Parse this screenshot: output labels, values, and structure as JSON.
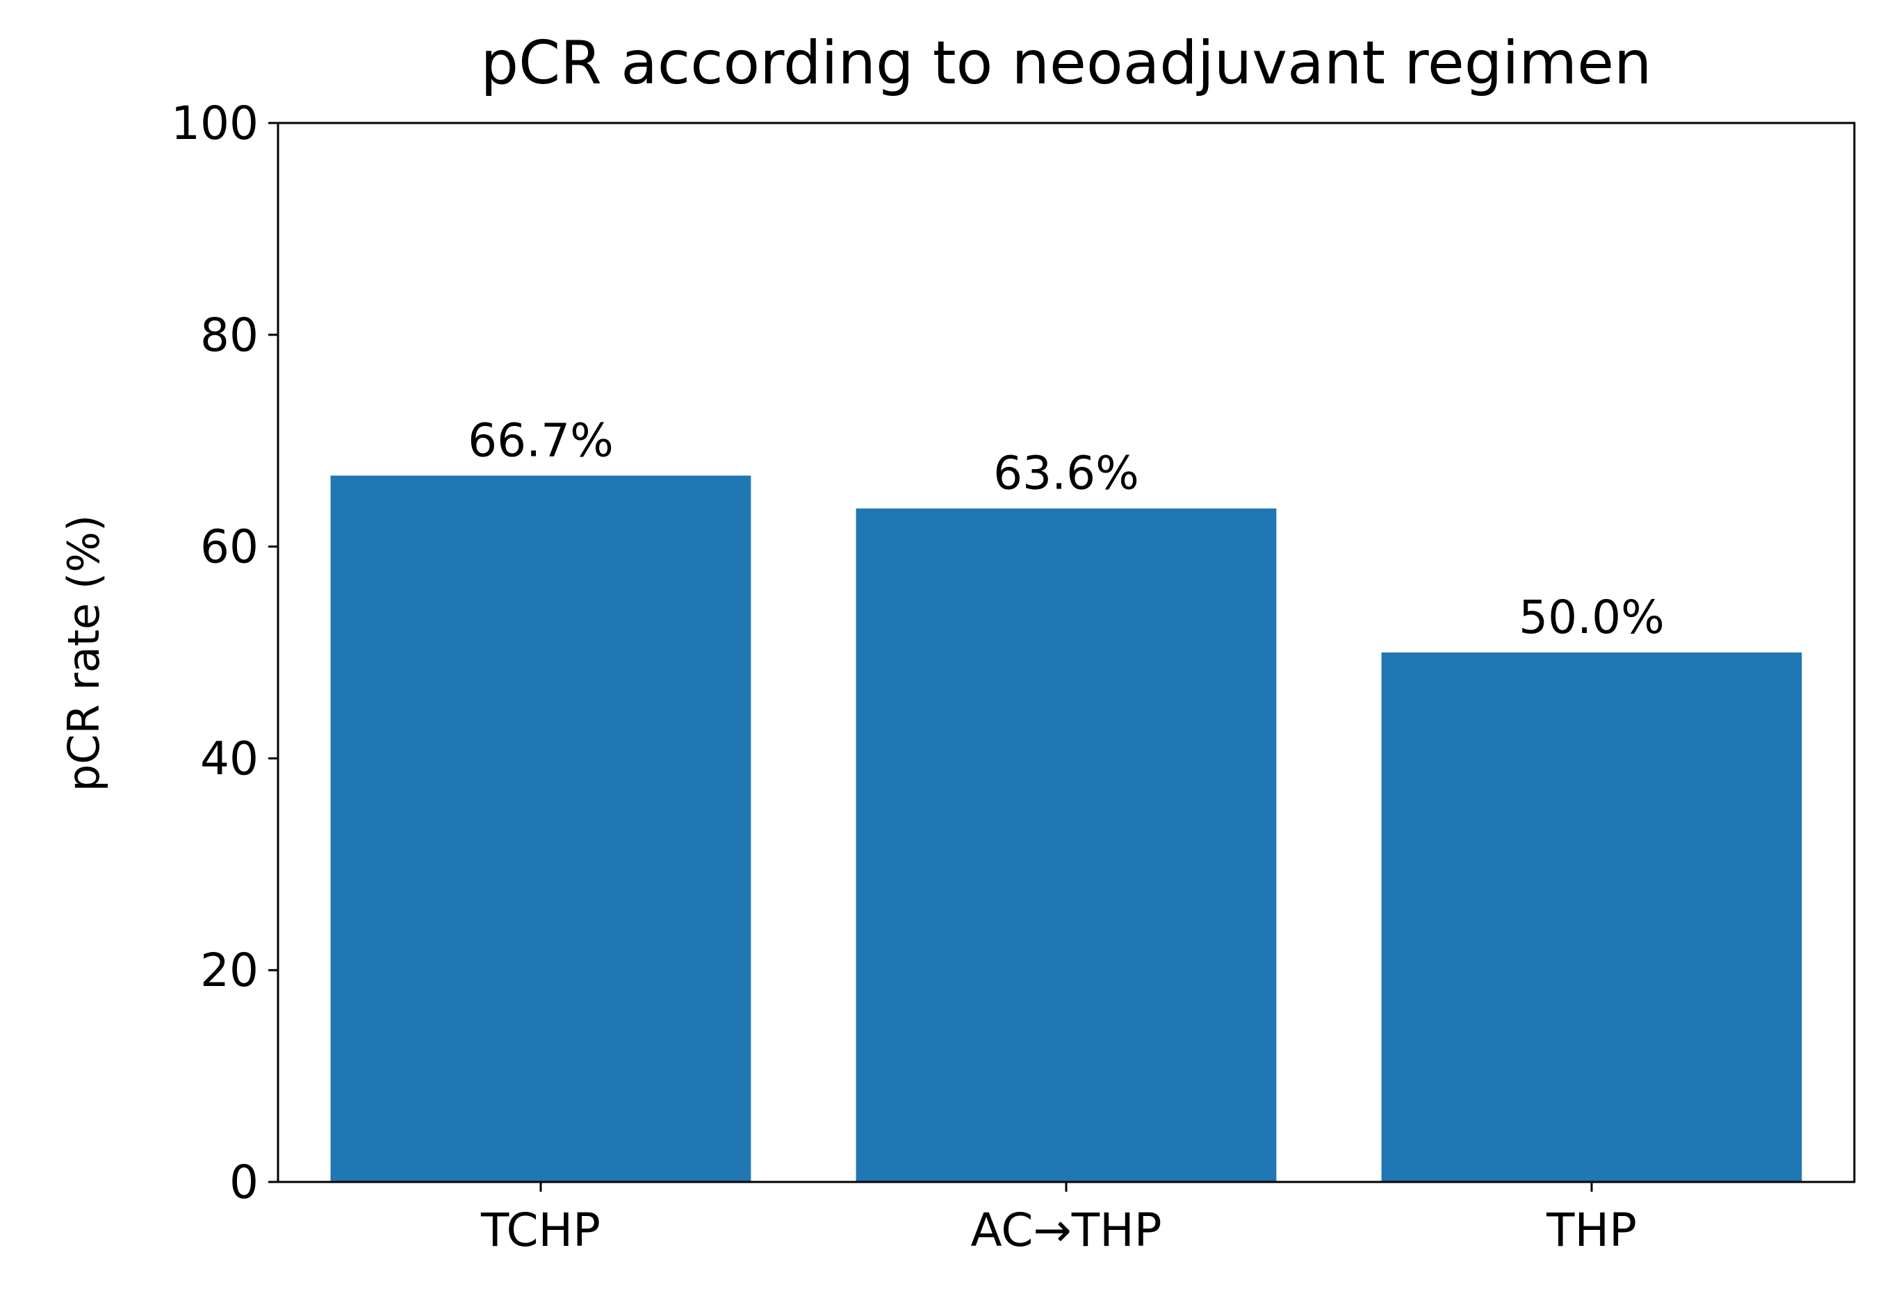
{
  "chart_data": {
    "type": "bar",
    "title": "pCR according to neoadjuvant regimen",
    "xlabel": "",
    "ylabel": "pCR rate (%)",
    "categories": [
      "TCHP",
      "AC→THP",
      "THP"
    ],
    "values": [
      66.7,
      63.6,
      50.0
    ],
    "data_labels": [
      "66.7%",
      "63.6%",
      "50.0%"
    ],
    "ylim": [
      0,
      100
    ],
    "yticks": [
      0,
      20,
      40,
      60,
      80,
      100
    ],
    "ytick_labels": [
      "0",
      "20",
      "40",
      "60",
      "80",
      "100"
    ],
    "grid": false,
    "legend": "none",
    "colors": {
      "bar": "#2077b4",
      "axis": "#000000",
      "text": "#000000"
    }
  }
}
